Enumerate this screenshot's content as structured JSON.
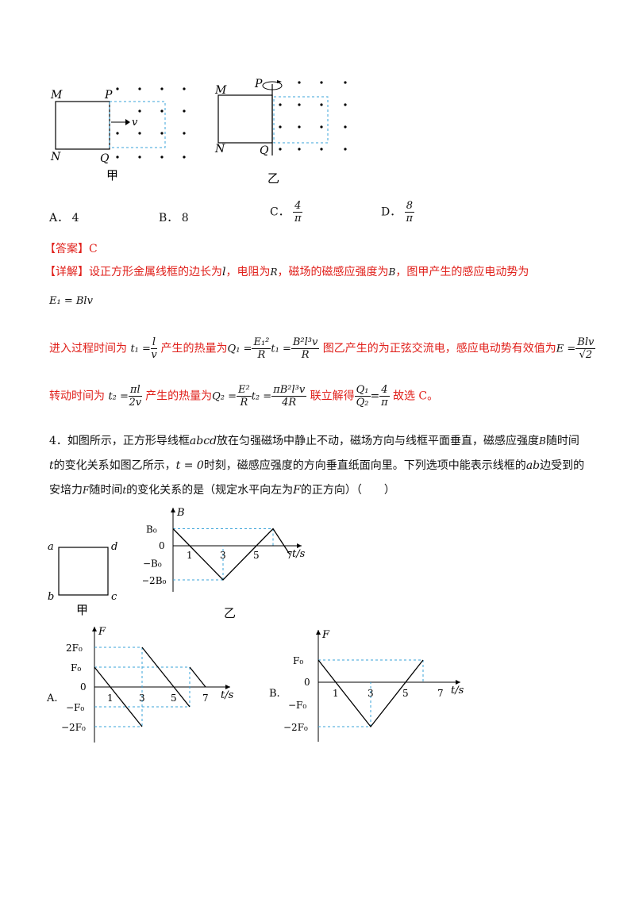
{
  "fig_top": {
    "jia": {
      "M": "M",
      "N": "N",
      "P": "P",
      "Q": "Q",
      "v": "v",
      "caption": "甲"
    },
    "yi": {
      "M": "M",
      "N": "N",
      "P": "P",
      "Q": "Q",
      "caption": "乙"
    }
  },
  "options_q3": {
    "A_label": "A．",
    "A_value": "4",
    "B_label": "B．",
    "B_value": "8",
    "C_label": "C．",
    "C_num": "4",
    "C_den": "π",
    "D_label": "D．",
    "D_num": "8",
    "D_den": "π"
  },
  "answer": {
    "label": "【答案】",
    "value": "C"
  },
  "detail": {
    "label": "【详解】",
    "line1_a": "设正方形金属线框的边长为",
    "line1_l": "l",
    "line1_b": "，电阻为",
    "line1_R": "R",
    "line1_c": "，磁场的磁感应强度为",
    "line1_B": "B",
    "line1_d": "，图甲产生的感应电动势为",
    "eq_E1": "E₁ = Blv",
    "line3_a": "进入过程时间为",
    "line3_t1": "t₁ =",
    "line3_t1_num": "l",
    "line3_t1_den": "v",
    "line3_b": "产生的热量为",
    "line3_Q1": "Q₁ =",
    "line3_Q1_num": "E₁²",
    "line3_Q1_den": "R",
    "line3_Q1_mid": "t₁ =",
    "line3_Q1b_num": "B²l³v",
    "line3_Q1b_den": "R",
    "line3_c": "图乙产生的为正弦交流电，感应电动势有效值为",
    "line3_E": "E =",
    "line3_E_num": "Blv",
    "line3_E_den": "√2",
    "line4_a": "转动时间为",
    "line4_t2": "t₂ =",
    "line4_t2_num": "πl",
    "line4_t2_den": "2v",
    "line4_b": "产生的热量为",
    "line4_Q2": "Q₂ =",
    "line4_Q2_num": "E²",
    "line4_Q2_den": "R",
    "line4_Q2_mid": "t₂ =",
    "line4_Q2b_num": "πB²l³v",
    "line4_Q2b_den": "4R",
    "line4_c": "联立解得",
    "line4_r_num": "Q₁",
    "line4_r_den": "Q₂",
    "line4_eq": "=",
    "line4_v_num": "4",
    "line4_v_den": "π",
    "line4_d": "故选 C。"
  },
  "question4": {
    "line1_a": "4．如图所示，正方形导线框",
    "line1_abcd": "abcd",
    "line1_b": "放在匀强磁场中静止不动，磁场方向与线框平面垂直，磁感应强度",
    "line1_B": "B",
    "line1_c": "随时间",
    "line2_t": "t",
    "line2_a": "的变化关系如图乙所示，",
    "line2_t0": "t = 0",
    "line2_b": "时刻，磁感应强度的方向垂直纸面向里。下列选项中能表示线框的",
    "line2_ab": "ab",
    "line2_c": "边受到的",
    "line3_a": "安培力",
    "line3_F": "F",
    "line3_b": "随时间",
    "line3_t": "t",
    "line3_c": "的变化关系的是（规定水平向左为",
    "line3_F2": "F",
    "line3_d": "的正方向）（　　）"
  },
  "fig_q4": {
    "jia": {
      "a": "a",
      "b": "b",
      "c": "c",
      "d": "d",
      "caption": "甲"
    },
    "yi_caption": "乙"
  },
  "chart_data": [
    {
      "type": "line",
      "ylabel": "B",
      "xlabel": "t/s",
      "x": [
        0,
        1,
        3,
        5,
        6,
        7
      ],
      "y": [
        1,
        0,
        -2,
        0,
        1,
        -0.5
      ],
      "y_unit": "B₀",
      "tick_labels_x": [
        "0",
        "1",
        "3",
        "5",
        "7"
      ],
      "tick_labels_y": [
        "B₀",
        "0",
        "−B₀",
        "−2B₀"
      ]
    },
    {
      "type": "line",
      "option": "A.",
      "ylabel": "F",
      "xlabel": "t/s",
      "segments": [
        {
          "x": [
            0,
            3
          ],
          "y": [
            1,
            -2
          ]
        },
        {
          "x": [
            3,
            5
          ],
          "y": [
            2,
            0
          ]
        },
        {
          "x": [
            5,
            6
          ],
          "y": [
            0,
            -1
          ]
        },
        {
          "x": [
            6,
            7
          ],
          "y": [
            1,
            0
          ]
        }
      ],
      "y_unit": "F₀",
      "tick_labels_x": [
        "1",
        "3",
        "5",
        "7"
      ],
      "tick_labels_y": [
        "2F₀",
        "F₀",
        "0",
        "−F₀",
        "−2F₀"
      ]
    },
    {
      "type": "line",
      "option": "B.",
      "ylabel": "F",
      "xlabel": "t/s",
      "x": [
        0,
        3,
        6
      ],
      "y": [
        1,
        -2,
        1
      ],
      "y_unit": "F₀",
      "tick_labels_x": [
        "0",
        "1",
        "3",
        "5",
        "7"
      ],
      "tick_labels_y": [
        "F₀",
        "0",
        "−F₀",
        "−2F₀"
      ]
    }
  ],
  "colors": {
    "dash": "#3aa3d8",
    "answer": "#e0201b",
    "text": "#111111"
  }
}
